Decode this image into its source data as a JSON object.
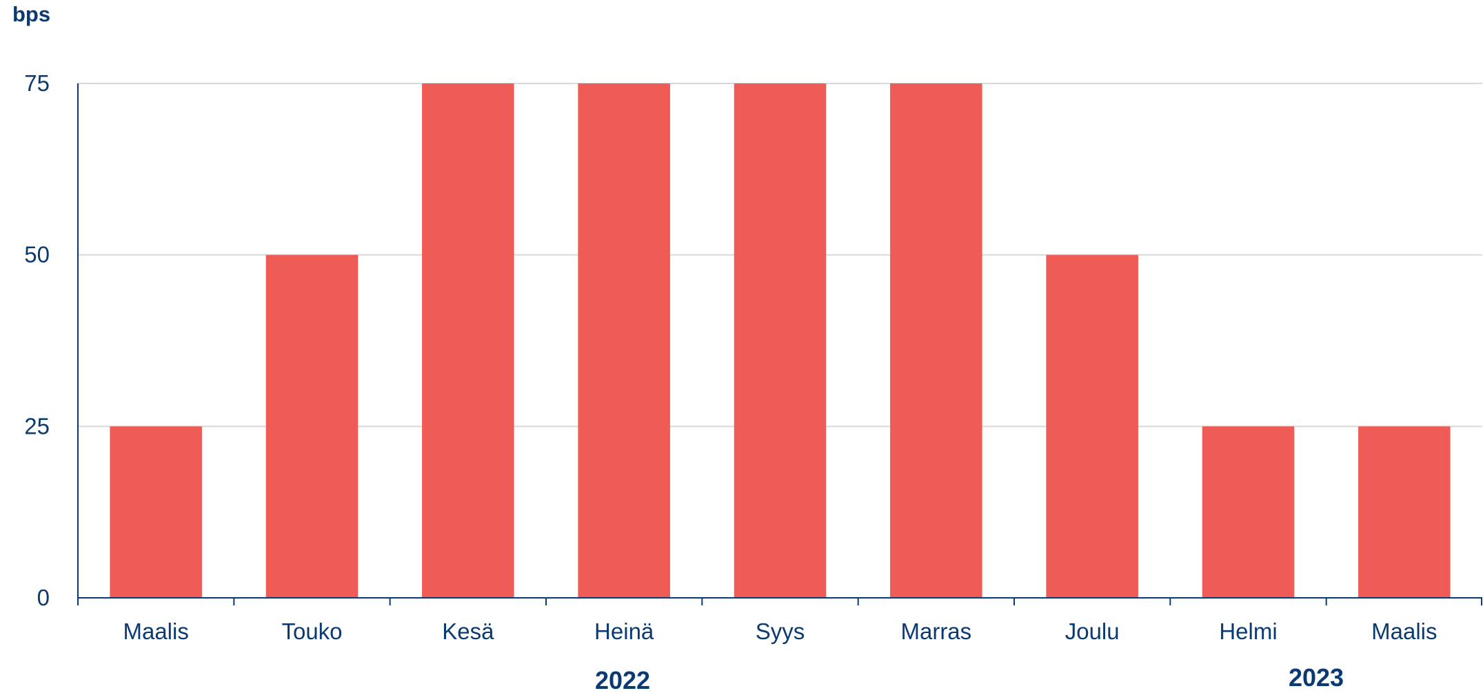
{
  "chart_data": {
    "type": "bar",
    "ylabel": "bps",
    "categories": [
      "Maalis",
      "Touko",
      "Kesä",
      "Heinä",
      "Syys",
      "Marras",
      "Joulu",
      "Helmi",
      "Maalis"
    ],
    "values": [
      25,
      50,
      75,
      75,
      75,
      75,
      50,
      25,
      25
    ],
    "ylim": [
      0,
      75
    ],
    "yticks": [
      "0",
      "25",
      "50",
      "75"
    ],
    "year_labels": [
      "2022",
      "2023"
    ],
    "grid": true,
    "bar_color": "#ef5b55",
    "axis_color": "#0b3a73",
    "grid_color": "#d9d9d9"
  }
}
